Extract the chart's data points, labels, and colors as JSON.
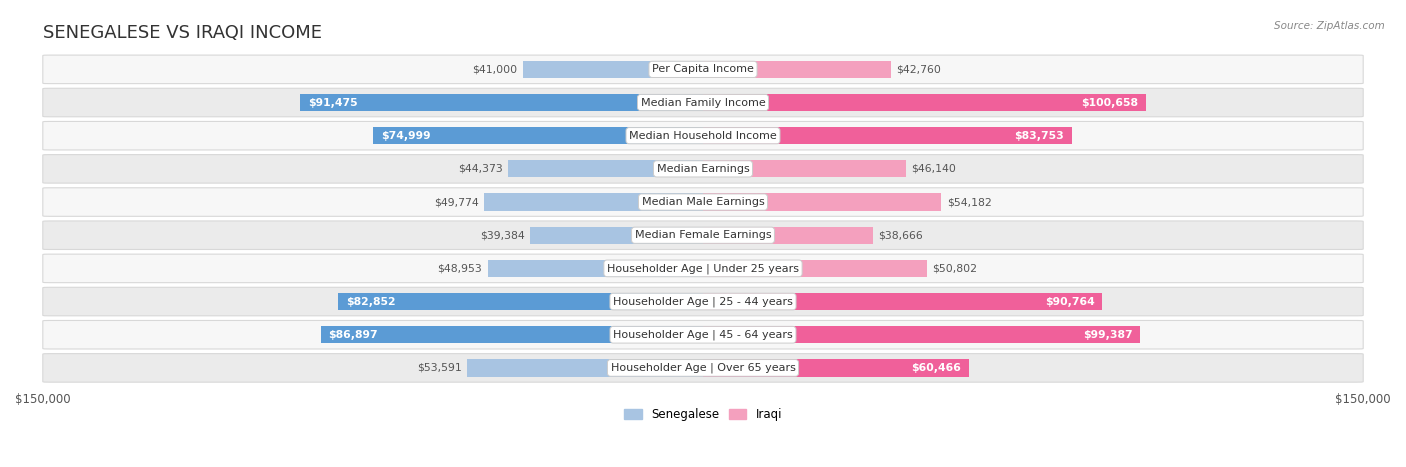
{
  "title": "SENEGALESE VS IRAQI INCOME",
  "source": "Source: ZipAtlas.com",
  "categories": [
    "Per Capita Income",
    "Median Family Income",
    "Median Household Income",
    "Median Earnings",
    "Median Male Earnings",
    "Median Female Earnings",
    "Householder Age | Under 25 years",
    "Householder Age | 25 - 44 years",
    "Householder Age | 45 - 64 years",
    "Householder Age | Over 65 years"
  ],
  "senegalese_values": [
    41000,
    91475,
    74999,
    44373,
    49774,
    39384,
    48953,
    82852,
    86897,
    53591
  ],
  "iraqi_values": [
    42760,
    100658,
    83753,
    46140,
    54182,
    38666,
    50802,
    90764,
    99387,
    60466
  ],
  "senegalese_labels": [
    "$41,000",
    "$91,475",
    "$74,999",
    "$44,373",
    "$49,774",
    "$39,384",
    "$48,953",
    "$82,852",
    "$86,897",
    "$53,591"
  ],
  "iraqi_labels": [
    "$42,760",
    "$100,658",
    "$83,753",
    "$46,140",
    "$54,182",
    "$38,666",
    "$50,802",
    "$90,764",
    "$99,387",
    "$60,466"
  ],
  "max_value": 150000,
  "color_senegalese_light": "#a8c4e2",
  "color_senegalese_dark": "#5b9bd5",
  "color_iraqi_light": "#f4a0be",
  "color_iraqi_dark": "#f0609a",
  "row_bg_odd": "#f7f7f7",
  "row_bg_even": "#ebebeb",
  "row_border": "#d8d8d8",
  "bar_height": 0.52,
  "legend_label_senegalese": "Senegalese",
  "legend_label_iraqi": "Iraqi",
  "title_fontsize": 13,
  "label_fontsize": 8.0,
  "value_fontsize": 7.8,
  "threshold_dark_sen": 60000,
  "threshold_dark_irq": 60000,
  "figwidth": 14.06,
  "figheight": 4.67
}
